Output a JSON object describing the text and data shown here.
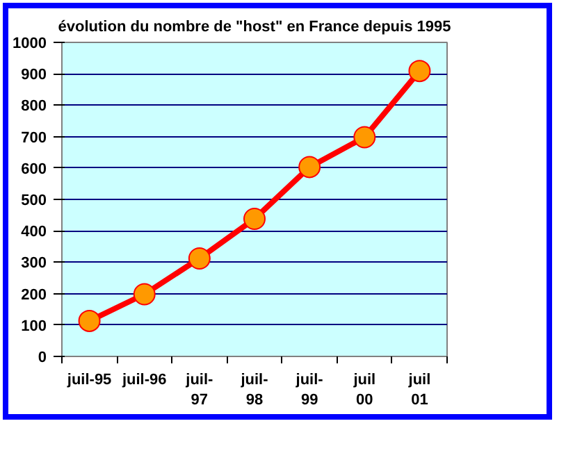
{
  "chart_data": {
    "type": "line",
    "title": "évolution du nombre de \"host\" en France depuis 1995",
    "categories": [
      "juil-95",
      "juil-96",
      "juil-\n97",
      "juil-\n98",
      "juil-\n99",
      "juil\n00",
      "juil\n01"
    ],
    "series": [
      {
        "color": "#ff0000",
        "values": [
          113,
          198,
          312,
          438,
          603,
          698,
          909
        ]
      }
    ],
    "ylim": [
      0,
      1000
    ],
    "yticks": [
      0,
      100,
      200,
      300,
      400,
      500,
      600,
      700,
      800,
      900,
      1000
    ],
    "grid": "y",
    "marker": "circle",
    "line_style": "solid"
  }
}
